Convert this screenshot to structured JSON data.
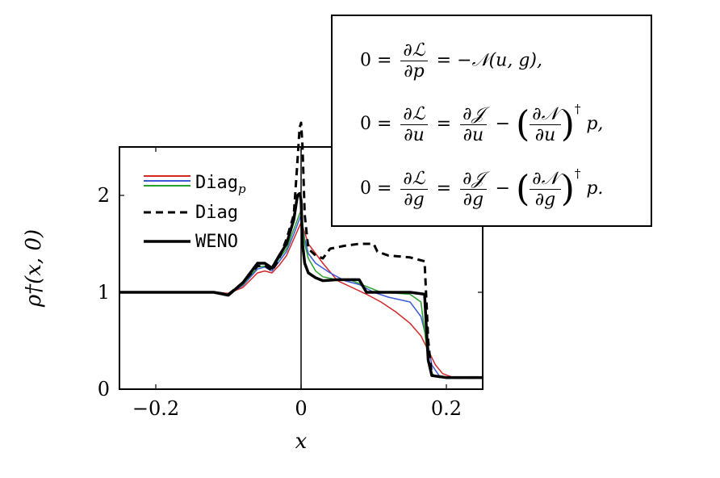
{
  "chart_data": {
    "type": "line",
    "xlabel": "x",
    "ylabel": "ρ†(x, 0)",
    "xlim": [
      -0.25,
      0.25
    ],
    "ylim": [
      0,
      2.5
    ],
    "xticks": [
      -0.2,
      0,
      0.2
    ],
    "xtick_labels": [
      "−0.2",
      "0",
      "0.2"
    ],
    "yticks": [
      0,
      1,
      2
    ],
    "ytick_labels": [
      "0",
      "1",
      "2"
    ],
    "vertical_line_x": 0,
    "legend": {
      "position": "top-left",
      "entries": [
        {
          "label": "Diag",
          "subscript": "p",
          "style": "thin-colored"
        },
        {
          "label": "Diag",
          "style": "dashed"
        },
        {
          "label": "WENO",
          "style": "solid-thick"
        }
      ]
    },
    "series": [
      {
        "name": "Diag",
        "color": "#000000",
        "dash": "dashed",
        "x": [
          -0.25,
          -0.12,
          -0.1,
          -0.08,
          -0.06,
          -0.05,
          -0.04,
          -0.03,
          -0.02,
          -0.01,
          -0.005,
          -0.002,
          0.0,
          0.002,
          0.005,
          0.01,
          0.02,
          0.03,
          0.04,
          0.06,
          0.08,
          0.1,
          0.105,
          0.12,
          0.15,
          0.17,
          0.172,
          0.175,
          0.18,
          0.2,
          0.25
        ],
        "y": [
          1.0,
          1.0,
          0.98,
          1.1,
          1.27,
          1.28,
          1.22,
          1.35,
          1.55,
          1.8,
          2.35,
          2.7,
          2.75,
          2.5,
          1.8,
          1.45,
          1.38,
          1.35,
          1.45,
          1.48,
          1.5,
          1.5,
          1.42,
          1.38,
          1.36,
          1.32,
          1.0,
          0.5,
          0.14,
          0.12,
          0.12
        ]
      },
      {
        "name": "WENO",
        "color": "#000000",
        "dash": "solid",
        "x": [
          -0.25,
          -0.12,
          -0.1,
          -0.08,
          -0.06,
          -0.05,
          -0.04,
          -0.03,
          -0.02,
          -0.01,
          -0.005,
          -0.002,
          0.0,
          0.002,
          0.005,
          0.01,
          0.02,
          0.03,
          0.05,
          0.07,
          0.08,
          0.09,
          0.1,
          0.15,
          0.17,
          0.172,
          0.175,
          0.18,
          0.2,
          0.25
        ],
        "y": [
          1.0,
          1.0,
          0.97,
          1.1,
          1.3,
          1.3,
          1.25,
          1.38,
          1.5,
          1.75,
          2.0,
          2.02,
          1.95,
          1.5,
          1.3,
          1.2,
          1.15,
          1.12,
          1.13,
          1.13,
          1.13,
          1.0,
          1.0,
          1.0,
          0.98,
          0.7,
          0.3,
          0.14,
          0.12,
          0.12
        ]
      },
      {
        "name": "Diag_p (1)",
        "color": "#2ca02c",
        "dash": "solid",
        "x": [
          -0.25,
          -0.12,
          -0.1,
          -0.08,
          -0.06,
          -0.05,
          -0.04,
          -0.03,
          -0.02,
          -0.01,
          0.0,
          0.005,
          0.01,
          0.02,
          0.03,
          0.05,
          0.07,
          0.09,
          0.11,
          0.15,
          0.165,
          0.17,
          0.175,
          0.18,
          0.19,
          0.25
        ],
        "y": [
          1.0,
          1.0,
          0.98,
          1.08,
          1.26,
          1.27,
          1.24,
          1.35,
          1.45,
          1.65,
          1.85,
          1.5,
          1.35,
          1.22,
          1.16,
          1.13,
          1.12,
          1.06,
          1.0,
          0.98,
          0.9,
          0.6,
          0.3,
          0.16,
          0.12,
          0.12
        ]
      },
      {
        "name": "Diag_p (2)",
        "color": "#3b5bdb",
        "dash": "solid",
        "x": [
          -0.25,
          -0.12,
          -0.1,
          -0.08,
          -0.06,
          -0.05,
          -0.04,
          -0.03,
          -0.02,
          -0.01,
          0.0,
          0.005,
          0.01,
          0.02,
          0.04,
          0.06,
          0.08,
          0.1,
          0.12,
          0.15,
          0.165,
          0.175,
          0.18,
          0.19,
          0.2,
          0.25
        ],
        "y": [
          1.0,
          1.0,
          0.98,
          1.07,
          1.24,
          1.26,
          1.22,
          1.32,
          1.42,
          1.6,
          1.8,
          1.55,
          1.4,
          1.3,
          1.2,
          1.12,
          1.08,
          1.0,
          0.95,
          0.9,
          0.75,
          0.45,
          0.25,
          0.14,
          0.12,
          0.12
        ]
      },
      {
        "name": "Diag_p (3)",
        "color": "#d62728",
        "dash": "solid",
        "x": [
          -0.25,
          -0.12,
          -0.1,
          -0.08,
          -0.06,
          -0.05,
          -0.04,
          -0.03,
          -0.02,
          -0.01,
          0.0,
          0.005,
          0.01,
          0.03,
          0.05,
          0.07,
          0.09,
          0.11,
          0.13,
          0.15,
          0.165,
          0.175,
          0.185,
          0.195,
          0.21,
          0.25
        ],
        "y": [
          1.0,
          1.0,
          0.99,
          1.05,
          1.2,
          1.22,
          1.2,
          1.28,
          1.38,
          1.55,
          1.72,
          1.62,
          1.5,
          1.3,
          1.12,
          1.05,
          0.98,
          0.9,
          0.8,
          0.68,
          0.55,
          0.4,
          0.25,
          0.16,
          0.12,
          0.12
        ]
      }
    ]
  },
  "equations": [
    {
      "lhs": "0 = ",
      "frac1_num": "∂ℒ",
      "frac1_den": "∂p",
      "mid": " = −𝒩(u, g),"
    },
    {
      "lhs": "0 = ",
      "frac1_num": "∂ℒ",
      "frac1_den": "∂u",
      "eq": " = ",
      "frac2_num": "∂𝒥",
      "frac2_den": "∂u",
      "minus": " − ",
      "frac3_num": "∂𝒩",
      "frac3_den": "∂u",
      "sup": "†",
      "tail": " p,"
    },
    {
      "lhs": "0 = ",
      "frac1_num": "∂ℒ",
      "frac1_den": "∂g",
      "eq": " = ",
      "frac2_num": "∂𝒥",
      "frac2_den": "∂g",
      "minus": " − ",
      "frac3_num": "∂𝒩",
      "frac3_den": "∂g",
      "sup": "†",
      "tail": " p."
    }
  ]
}
